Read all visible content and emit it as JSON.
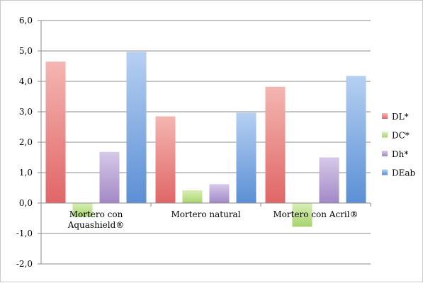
{
  "chart_data": {
    "type": "bar",
    "title": "",
    "xlabel": "",
    "ylabel": "",
    "ylim": [
      -2.0,
      6.0
    ],
    "yticks": [
      "6,0",
      "5,0",
      "4,0",
      "3,0",
      "2,0",
      "1,0",
      "0,0",
      "-1,0",
      "-2,0"
    ],
    "ytick_values": [
      6,
      5,
      4,
      3,
      2,
      1,
      0,
      -1,
      -2
    ],
    "grid": true,
    "legend_position": "right",
    "categories": [
      [
        "Mortero con",
        "Aquashield®"
      ],
      [
        "Mortero natural"
      ],
      [
        "Mortero con Acril®"
      ]
    ],
    "series": [
      {
        "name": "DL*",
        "values": [
          4.65,
          2.85,
          3.82
        ],
        "color": "#e06666",
        "color_light": "#f4b6b2"
      },
      {
        "name": "DC*",
        "values": [
          -0.45,
          0.42,
          -0.78
        ],
        "color": "#a8d46f",
        "color_light": "#d8efb6"
      },
      {
        "name": "Dh*",
        "values": [
          1.68,
          0.62,
          1.5
        ],
        "color": "#a288c6",
        "color_light": "#d6c9e8"
      },
      {
        "name": "DEab",
        "values": [
          4.97,
          2.97,
          4.18
        ],
        "color": "#5b8fd4",
        "color_light": "#b6d0f2"
      }
    ]
  }
}
